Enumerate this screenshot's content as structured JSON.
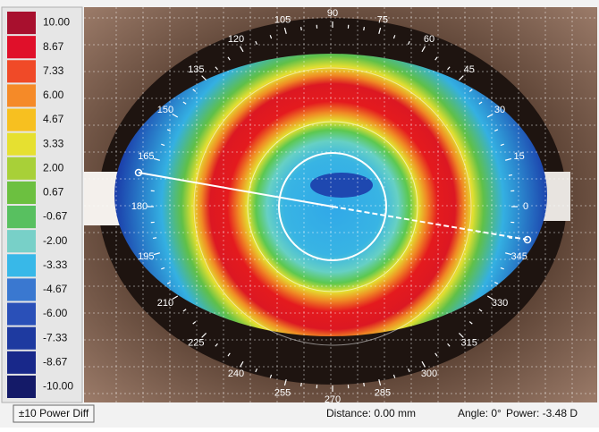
{
  "legend": [
    {
      "label": "10.00",
      "color": "#a8102e"
    },
    {
      "label": "8.67",
      "color": "#e0102a"
    },
    {
      "label": "7.33",
      "color": "#f04a28"
    },
    {
      "label": "6.00",
      "color": "#f58a28"
    },
    {
      "label": "4.67",
      "color": "#f7c020"
    },
    {
      "label": "3.33",
      "color": "#e6e030"
    },
    {
      "label": "2.00",
      "color": "#a8d038"
    },
    {
      "label": "0.67",
      "color": "#6cc040"
    },
    {
      "label": "-0.67",
      "color": "#58c060"
    },
    {
      "label": "-2.00",
      "color": "#78d0c8"
    },
    {
      "label": "-3.33",
      "color": "#38b8e8"
    },
    {
      "label": "-4.67",
      "color": "#3a78d0"
    },
    {
      "label": "-6.00",
      "color": "#2a50b8"
    },
    {
      "label": "-7.33",
      "color": "#1e3aa0"
    },
    {
      "label": "-8.67",
      "color": "#18288a"
    },
    {
      "label": "-10.00",
      "color": "#141a68"
    }
  ],
  "angle_labels": [
    "0",
    "15",
    "30",
    "45",
    "60",
    "75",
    "90",
    "105",
    "120",
    "135",
    "150",
    "165",
    "180",
    "195",
    "210",
    "225",
    "240",
    "255",
    "270",
    "285",
    "300",
    "315",
    "330",
    "345"
  ],
  "button": "±10 Power Diff",
  "status": {
    "distance": "Distance: 0.00 mm",
    "angle": "Angle: 0°",
    "power": "Power: -3.48 D"
  }
}
